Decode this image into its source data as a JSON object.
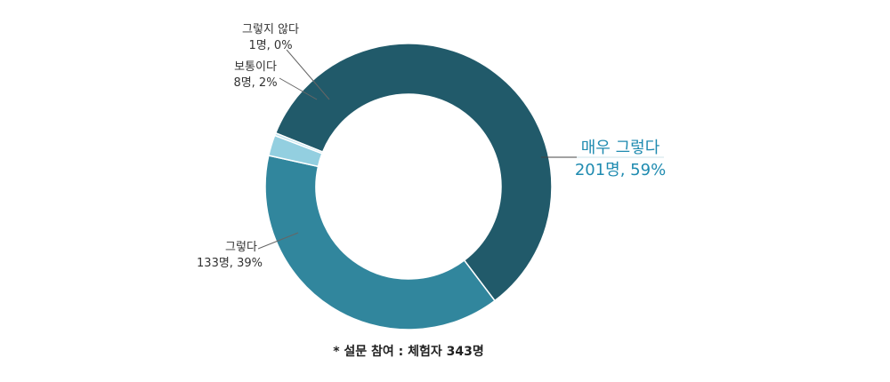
{
  "chart_data": {
    "type": "pie",
    "variant": "donut",
    "categories": [
      "매우 그렇다",
      "그렇다",
      "보통이다",
      "그렇지 않다"
    ],
    "values": [
      201,
      133,
      8,
      1
    ],
    "percent_labels": [
      "59%",
      "39%",
      "2%",
      "0%"
    ],
    "label_lines": [
      [
        "매우 그렇다",
        "201명, 59%"
      ],
      [
        "그렇다",
        "133명, 39%"
      ],
      [
        "보통이다",
        "8명, 2%"
      ],
      [
        "그렇지 않다",
        "1명, 0%"
      ]
    ],
    "colors": [
      "#215a6a",
      "#31869d",
      "#93cfe0",
      "#bfe4ef"
    ],
    "highlight_color": "#1f8bb0",
    "total": 343
  },
  "footnote": "* 설문 참여 : 체험자 343명"
}
